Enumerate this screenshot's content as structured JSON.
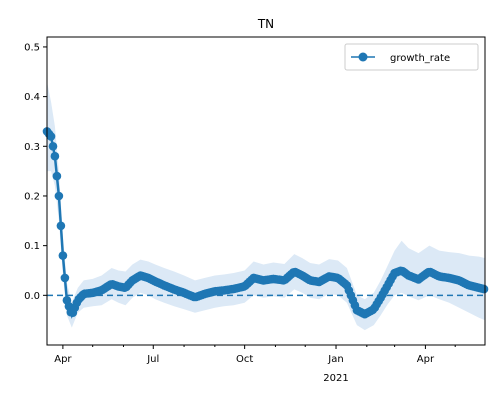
{
  "chart_data": {
    "type": "line",
    "title": "TN",
    "xlabel": "",
    "ylabel": "",
    "x_range": [
      "2020-03-16",
      "2021-05-31"
    ],
    "ylim": [
      -0.1,
      0.52
    ],
    "y_ticks": [
      0.0,
      0.1,
      0.2,
      0.3,
      0.4,
      0.5
    ],
    "y_tick_labels": [
      "0.0",
      "0.1",
      "0.2",
      "0.3",
      "0.4",
      "0.5"
    ],
    "x_ticks": [
      {
        "date": "2020-04-01",
        "label": "Apr"
      },
      {
        "date": "2020-07-01",
        "label": "Jul"
      },
      {
        "date": "2020-10-01",
        "label": "Oct"
      },
      {
        "date": "2021-01-01",
        "label": "Jan",
        "sublabel": "2021"
      },
      {
        "date": "2021-04-01",
        "label": "Apr"
      }
    ],
    "x_minor_ticks": [
      "2020-05-01",
      "2020-06-01",
      "2020-08-01",
      "2020-09-01",
      "2020-11-01",
      "2020-12-01",
      "2021-02-01",
      "2021-03-01",
      "2021-05-01"
    ],
    "legend_position": "top-right",
    "reference_line": {
      "y": 0.0,
      "style": "dashed"
    },
    "series": [
      {
        "name": "growth_rate",
        "color": "#1f77b4",
        "marker": "circle",
        "band_color": "#dce9f6",
        "x": [
          "2020-03-16",
          "2020-03-20",
          "2020-03-24",
          "2020-03-28",
          "2020-04-01",
          "2020-04-05",
          "2020-04-10",
          "2020-04-16",
          "2020-04-22",
          "2020-05-01",
          "2020-05-10",
          "2020-05-20",
          "2020-05-27",
          "2020-06-03",
          "2020-06-10",
          "2020-06-18",
          "2020-06-26",
          "2020-07-03",
          "2020-07-12",
          "2020-07-22",
          "2020-08-01",
          "2020-08-12",
          "2020-08-22",
          "2020-09-01",
          "2020-09-10",
          "2020-09-20",
          "2020-10-01",
          "2020-10-10",
          "2020-10-20",
          "2020-10-30",
          "2020-11-10",
          "2020-11-20",
          "2020-11-28",
          "2020-12-06",
          "2020-12-15",
          "2020-12-25",
          "2021-01-03",
          "2021-01-12",
          "2021-01-22",
          "2021-01-30",
          "2021-02-08",
          "2021-02-15",
          "2021-02-22",
          "2021-03-01",
          "2021-03-08",
          "2021-03-15",
          "2021-03-25",
          "2021-04-05",
          "2021-04-15",
          "2021-04-25",
          "2021-05-05",
          "2021-05-15",
          "2021-05-25",
          "2021-05-31"
        ],
        "y": [
          0.33,
          0.32,
          0.28,
          0.2,
          0.08,
          -0.01,
          -0.04,
          -0.01,
          0.003,
          0.005,
          0.01,
          0.023,
          0.018,
          0.015,
          0.03,
          0.04,
          0.035,
          0.028,
          0.02,
          0.012,
          0.005,
          -0.004,
          0.003,
          0.008,
          0.01,
          0.013,
          0.018,
          0.035,
          0.03,
          0.033,
          0.03,
          0.048,
          0.04,
          0.03,
          0.027,
          0.038,
          0.035,
          0.02,
          -0.03,
          -0.038,
          -0.028,
          -0.005,
          0.02,
          0.045,
          0.05,
          0.04,
          0.032,
          0.048,
          0.038,
          0.035,
          0.03,
          0.02,
          0.015,
          0.012
        ],
        "band_lower": [
          0.25,
          0.25,
          0.22,
          0.15,
          0.04,
          -0.04,
          -0.065,
          -0.035,
          -0.025,
          -0.022,
          -0.02,
          -0.008,
          -0.015,
          -0.02,
          -0.005,
          0.005,
          0.0,
          -0.008,
          -0.015,
          -0.022,
          -0.028,
          -0.035,
          -0.03,
          -0.025,
          -0.022,
          -0.02,
          -0.015,
          0.0,
          -0.005,
          -0.002,
          -0.005,
          0.012,
          0.005,
          -0.005,
          -0.008,
          0.003,
          0.0,
          -0.015,
          -0.06,
          -0.07,
          -0.06,
          -0.04,
          -0.018,
          0.0,
          0.005,
          -0.002,
          -0.01,
          0.0,
          -0.008,
          -0.015,
          -0.025,
          -0.035,
          -0.045,
          -0.05
        ],
        "band_upper": [
          0.43,
          0.39,
          0.34,
          0.25,
          0.12,
          0.025,
          -0.015,
          0.015,
          0.03,
          0.033,
          0.04,
          0.055,
          0.05,
          0.048,
          0.062,
          0.072,
          0.068,
          0.062,
          0.055,
          0.048,
          0.04,
          0.03,
          0.035,
          0.04,
          0.042,
          0.045,
          0.05,
          0.068,
          0.062,
          0.066,
          0.063,
          0.083,
          0.075,
          0.065,
          0.062,
          0.073,
          0.07,
          0.055,
          0.0,
          -0.008,
          0.005,
          0.03,
          0.06,
          0.09,
          0.11,
          0.095,
          0.085,
          0.1,
          0.09,
          0.087,
          0.085,
          0.08,
          0.078,
          0.075
        ]
      }
    ]
  }
}
